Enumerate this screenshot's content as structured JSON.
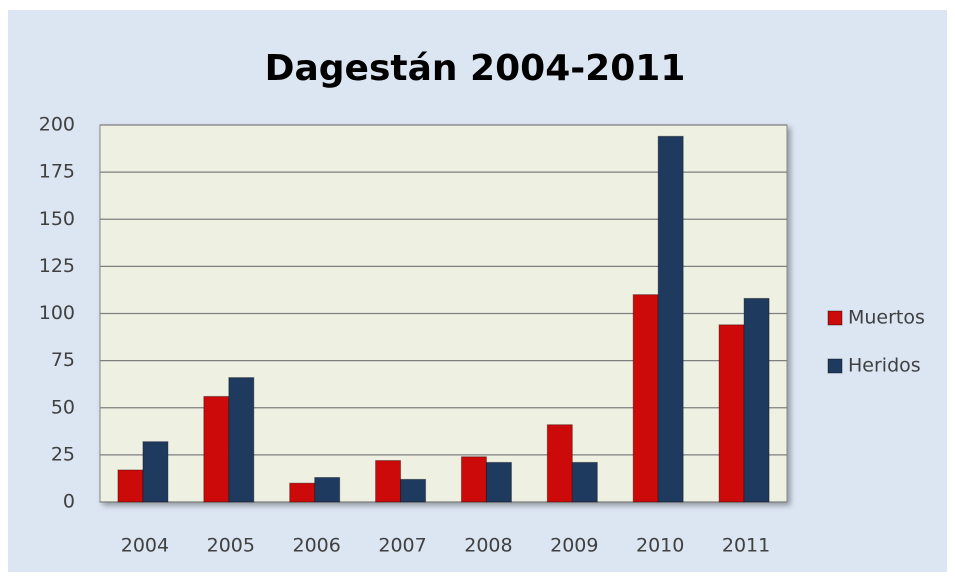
{
  "chart_data": {
    "type": "bar",
    "title": "Dagestán 2004-2011",
    "categories": [
      "2004",
      "2005",
      "2006",
      "2007",
      "2008",
      "2009",
      "2010",
      "2011"
    ],
    "series": [
      {
        "name": "Muertos",
        "color": "#cc0a0a",
        "values": [
          17,
          56,
          10,
          22,
          24,
          41,
          110,
          94
        ]
      },
      {
        "name": "Heridos",
        "color": "#1f3a5f",
        "values": [
          32,
          66,
          13,
          12,
          21,
          21,
          194,
          108
        ]
      }
    ],
    "ylim": [
      0,
      200
    ],
    "yticks": [
      0,
      25,
      50,
      75,
      100,
      125,
      150,
      175,
      200
    ],
    "grid": true,
    "legend": "right"
  }
}
